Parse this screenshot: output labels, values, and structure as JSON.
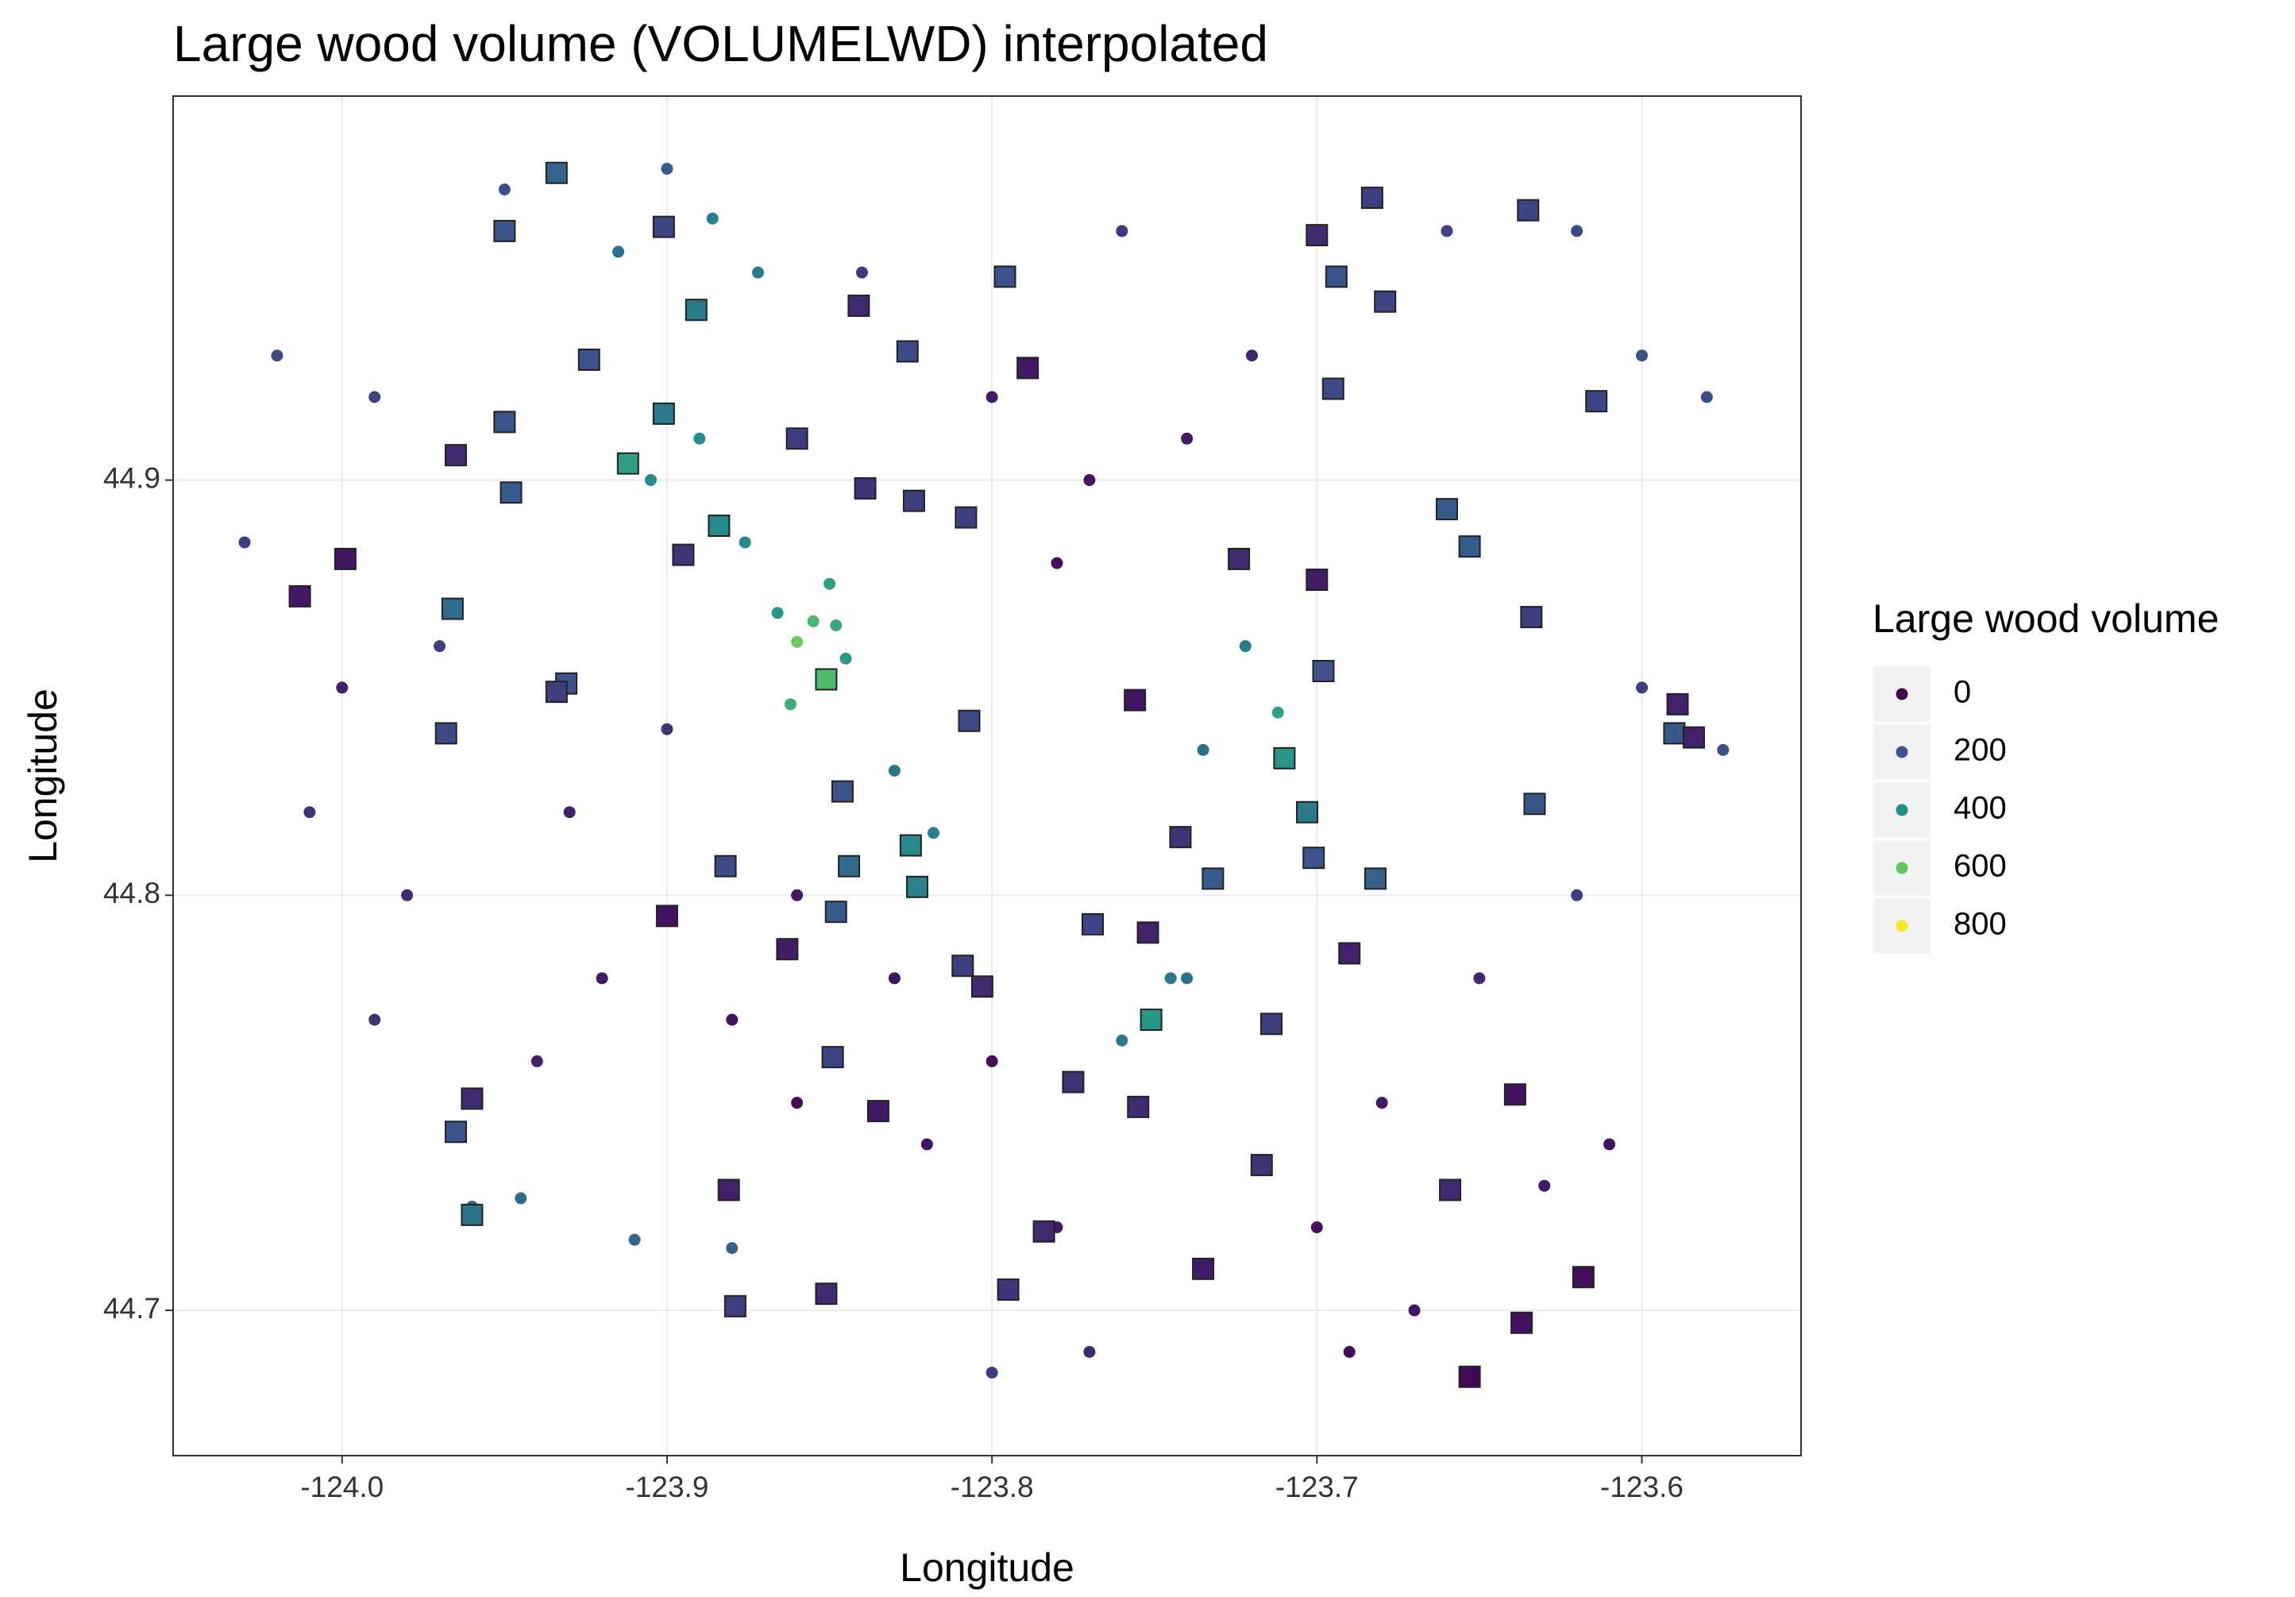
{
  "chart_data": {
    "type": "scatter",
    "title": "Large wood volume (VOLUMELWD) interpolated",
    "x_label": "Longitude",
    "y_label": "Longitude",
    "xlim": [
      -124.052,
      -123.551
    ],
    "ylim": [
      44.665,
      44.9925
    ],
    "xticks": [
      {
        "value": -124.0,
        "label": "-124.0"
      },
      -123.9,
      -123.8,
      -123.7,
      -123.6
    ],
    "yticks": [
      44.7,
      44.8,
      44.9
    ],
    "grid": true,
    "legend": {
      "title": "Large wood volume",
      "position": "right",
      "entries": [
        {
          "value": 0,
          "color": "#440154"
        },
        {
          "value": 200,
          "color": "#3b528b"
        },
        {
          "value": 400,
          "color": "#21908c"
        },
        {
          "value": 600,
          "color": "#5dc863"
        },
        {
          "value": 800,
          "color": "#fde725"
        }
      ]
    },
    "series": [
      {
        "marker": "circle",
        "x": [
          -123.86,
          -123.855,
          -123.848,
          -123.862,
          -123.85,
          -123.866,
          -123.845,
          -123.876,
          -123.89,
          -123.905,
          -123.872,
          -123.886,
          -123.915,
          -123.83,
          -123.818,
          -123.722,
          -123.712,
          -123.735,
          -123.745,
          -123.76,
          -123.74,
          -123.96,
          -123.945,
          -123.91,
          -123.88,
          -124.03,
          -124.02,
          -123.99,
          -123.98,
          -123.99,
          -123.94,
          -123.92,
          -123.88,
          -123.86,
          -123.82,
          -123.8,
          -123.78,
          -123.77,
          -123.8,
          -123.7,
          -123.69,
          -123.67,
          -123.63,
          -123.61,
          -123.78,
          -123.77,
          -123.74,
          -123.72,
          -123.76,
          -123.8,
          -123.66,
          -123.62,
          -123.6,
          -123.58,
          -123.6,
          -123.575,
          -123.62,
          -123.65,
          -123.68,
          -124.0,
          -124.01,
          -123.97,
          -123.93,
          -123.9,
          -123.86,
          -123.83,
          -123.9,
          -123.95,
          -123.84
        ],
        "y": [
          44.861,
          44.866,
          44.865,
          44.846,
          44.875,
          44.868,
          44.857,
          44.885,
          44.91,
          44.9,
          44.95,
          44.963,
          44.955,
          44.83,
          44.815,
          44.86,
          44.844,
          44.835,
          44.78,
          44.765,
          44.78,
          44.725,
          44.727,
          44.717,
          44.715,
          44.885,
          44.93,
          44.92,
          44.8,
          44.77,
          44.76,
          44.78,
          44.77,
          44.75,
          44.74,
          44.76,
          44.72,
          44.69,
          44.685,
          44.72,
          44.69,
          44.7,
          44.73,
          44.74,
          44.88,
          44.9,
          44.91,
          44.93,
          44.96,
          44.92,
          44.96,
          44.96,
          44.93,
          44.92,
          44.85,
          44.835,
          44.8,
          44.78,
          44.75,
          44.85,
          44.82,
          44.86,
          44.82,
          44.84,
          44.8,
          44.78,
          44.975,
          44.97,
          44.95
        ],
        "values": [
          620,
          540,
          480,
          500,
          450,
          420,
          430,
          380,
          400,
          380,
          330,
          350,
          300,
          330,
          350,
          330,
          450,
          300,
          320,
          330,
          300,
          280,
          290,
          260,
          240,
          150,
          180,
          170,
          100,
          120,
          80,
          60,
          40,
          30,
          40,
          30,
          60,
          100,
          150,
          40,
          30,
          50,
          60,
          40,
          30,
          50,
          60,
          90,
          140,
          60,
          160,
          180,
          200,
          190,
          150,
          200,
          150,
          100,
          60,
          80,
          120,
          150,
          80,
          120,
          60,
          50,
          230,
          200,
          140
        ]
      },
      {
        "marker": "square",
        "x": [
          -123.934,
          -123.95,
          -123.901,
          -123.891,
          -123.841,
          -123.796,
          -123.826,
          -123.789,
          -123.924,
          -123.901,
          -123.95,
          -123.965,
          -123.912,
          -123.86,
          -123.948,
          -123.884,
          -123.839,
          -123.824,
          -123.808,
          -123.895,
          -123.999,
          -124.013,
          -123.966,
          -123.851,
          -123.931,
          -123.934,
          -123.968,
          -123.807,
          -123.846,
          -123.882,
          -123.844,
          -123.825,
          -123.823,
          -123.9,
          -123.863,
          -123.848,
          -123.809,
          -123.803,
          -123.756,
          -123.742,
          -123.732,
          -123.769,
          -123.752,
          -123.751,
          -123.71,
          -123.703,
          -123.701,
          -123.698,
          -123.724,
          -123.7,
          -123.682,
          -123.69,
          -123.714,
          -123.775,
          -123.755,
          -123.849,
          -123.835,
          -123.96,
          -123.965,
          -123.96,
          -123.881,
          -123.784,
          -123.851,
          -123.879,
          -123.795,
          -123.735,
          -123.717,
          -123.659,
          -123.639,
          -123.618,
          -123.637,
          -123.653,
          -123.683,
          -123.635,
          -123.7,
          -123.694,
          -123.679,
          -123.695,
          -123.614,
          -123.66,
          -123.653,
          -123.634,
          -123.633,
          -123.589,
          -123.59,
          -123.584
        ],
        "y": [
          44.974,
          44.96,
          44.961,
          44.941,
          44.942,
          44.949,
          44.931,
          44.927,
          44.929,
          44.916,
          44.914,
          44.906,
          44.904,
          44.91,
          44.897,
          44.889,
          44.898,
          44.895,
          44.891,
          44.882,
          44.881,
          44.872,
          44.869,
          44.852,
          44.851,
          44.849,
          44.839,
          44.842,
          44.825,
          44.807,
          44.807,
          44.812,
          44.802,
          44.795,
          44.787,
          44.796,
          44.783,
          44.778,
          44.847,
          44.814,
          44.804,
          44.793,
          44.791,
          44.77,
          44.833,
          44.82,
          44.809,
          44.854,
          44.881,
          44.876,
          44.804,
          44.786,
          44.769,
          44.755,
          44.749,
          44.761,
          44.748,
          44.751,
          44.743,
          44.723,
          44.729,
          44.719,
          44.704,
          44.701,
          44.705,
          44.71,
          44.735,
          44.729,
          44.752,
          44.708,
          44.697,
          44.684,
          44.968,
          44.965,
          44.959,
          44.949,
          44.943,
          44.922,
          44.919,
          44.893,
          44.884,
          44.867,
          44.822,
          44.846,
          44.839,
          44.838
        ],
        "values": [
          250,
          200,
          170,
          330,
          100,
          200,
          180,
          60,
          200,
          330,
          200,
          100,
          450,
          150,
          230,
          380,
          120,
          150,
          150,
          130,
          50,
          60,
          280,
          550,
          200,
          150,
          180,
          180,
          200,
          180,
          280,
          380,
          350,
          40,
          70,
          230,
          150,
          100,
          50,
          120,
          230,
          170,
          80,
          430,
          420,
          330,
          200,
          200,
          100,
          70,
          250,
          80,
          150,
          120,
          100,
          170,
          60,
          100,
          200,
          300,
          80,
          100,
          100,
          150,
          130,
          70,
          120,
          100,
          40,
          30,
          40,
          20,
          150,
          170,
          100,
          200,
          170,
          180,
          170,
          230,
          230,
          150,
          220,
          80,
          220,
          80
        ]
      }
    ]
  }
}
